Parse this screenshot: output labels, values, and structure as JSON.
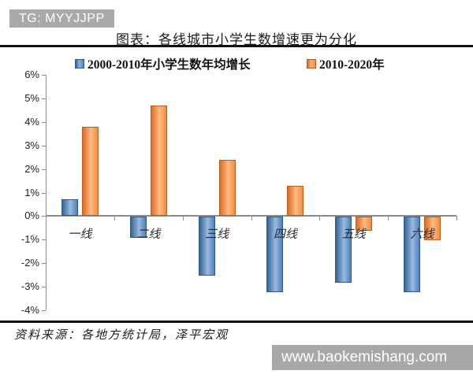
{
  "badge": {
    "label": "TG: MYYJJPP"
  },
  "header": {
    "title": "图表：各线城市小学生数增速更为分化"
  },
  "footer": {
    "source": "资料来源：各地方统计局，泽平宏观",
    "watermark": "www.baokemishang.com"
  },
  "colors": {
    "series_blue": "#4f81bd",
    "series_orange": "#f79646",
    "axis_gray": "#8c8c8c",
    "badge_gray": "#a9a9a9",
    "watermark_gray": "#a8a8a8"
  },
  "chart_data": {
    "type": "bar",
    "title": "图表：各线城市小学生数增速更为分化",
    "categories": [
      "一线",
      "二线",
      "三线",
      "四线",
      "五线",
      "六线"
    ],
    "series": [
      {
        "name": "2000-2010年小学生数年均增长",
        "color": "#4f81bd",
        "values": [
          0.7,
          -0.9,
          -2.5,
          -3.2,
          -2.8,
          -3.2
        ]
      },
      {
        "name": "2010-2020年",
        "color": "#f79646",
        "values": [
          3.8,
          4.7,
          2.4,
          1.3,
          -0.6,
          -1.0
        ]
      }
    ],
    "xlabel": "",
    "ylabel": "",
    "ylim": [
      -4,
      6
    ],
    "ytick_step": 1,
    "ytick_format": "percent",
    "grid": false,
    "legend_position": "top"
  }
}
